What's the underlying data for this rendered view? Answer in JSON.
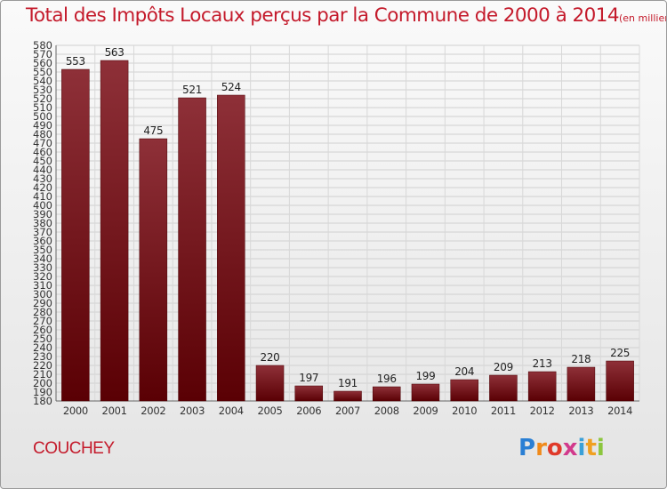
{
  "chart_data": {
    "type": "bar",
    "title": "Total des Impôts Locaux perçus par la Commune de 2000 à 2014",
    "unit": "(en milliers d'€)",
    "categories": [
      "2000",
      "2001",
      "2002",
      "2003",
      "2004",
      "2005",
      "2006",
      "2007",
      "2008",
      "2009",
      "2010",
      "2011",
      "2012",
      "2013",
      "2014"
    ],
    "values": [
      553,
      563,
      475,
      521,
      524,
      220,
      197,
      191,
      196,
      199,
      204,
      209,
      213,
      218,
      225
    ],
    "ylim": [
      180,
      580
    ],
    "ytick_step": 10,
    "grid": true,
    "bar_color": "#8b2a30"
  },
  "commune": "COUCHEY",
  "logo": {
    "text": "Proxiti",
    "colors": [
      "#2a7fd4",
      "#f08a1a",
      "#e03a2a",
      "#d23a8c",
      "#3aa0d8",
      "#f0a020",
      "#8cc63e"
    ]
  }
}
